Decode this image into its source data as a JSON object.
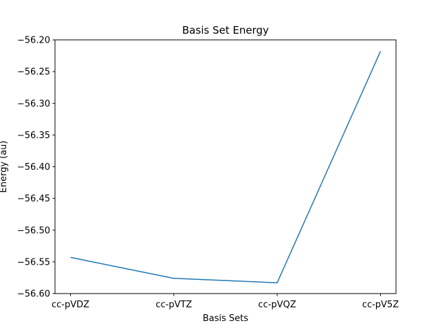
{
  "chart_data": {
    "type": "line",
    "title": "Basis Set Energy",
    "xlabel": "Basis Sets",
    "ylabel": "Energy (au)",
    "categories": [
      "cc-pVDZ",
      "cc-pVTZ",
      "cc-pVQZ",
      "cc-pV5Z"
    ],
    "series": [
      {
        "values": [
          -56.543,
          -56.576,
          -56.583,
          -56.218
        ],
        "color": "#1f77b4"
      }
    ],
    "ylim": [
      -56.6,
      -56.2
    ],
    "yticks": [
      -56.2,
      -56.25,
      -56.3,
      -56.35,
      -56.4,
      -56.45,
      -56.5,
      -56.55,
      -56.6
    ],
    "ytick_labels": [
      "−56.20",
      "−56.25",
      "−56.30",
      "−56.35",
      "−56.40",
      "−56.45",
      "−56.50",
      "−56.55",
      "−56.60"
    ],
    "grid": false,
    "legend": "none"
  }
}
